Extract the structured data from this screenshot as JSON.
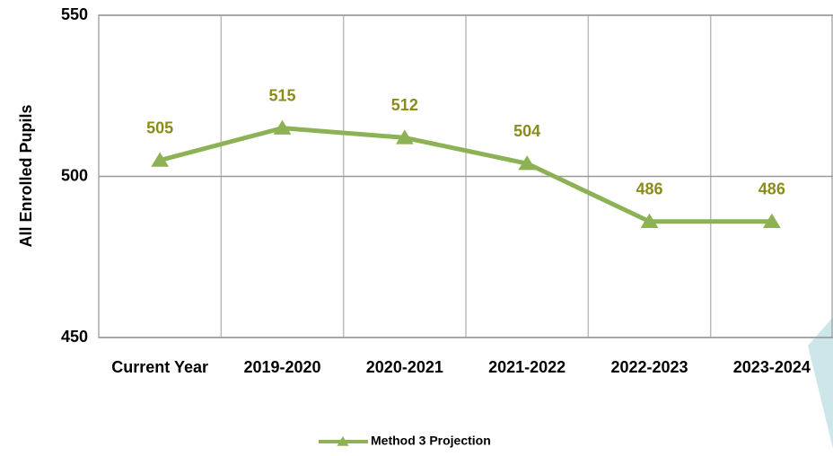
{
  "chart_data": {
    "type": "line",
    "y_label": "All Enrolled Pupils",
    "categories": [
      "Current Year",
      "2019-2020",
      "2020-2021",
      "2021-2022",
      "2022-2023",
      "2023-2024"
    ],
    "series": [
      {
        "name": "Method 3 Projection",
        "color": "#8db255",
        "values": [
          505,
          515,
          512,
          504,
          486,
          486
        ]
      }
    ],
    "ylim": [
      450,
      550
    ],
    "yticks": [
      450,
      500,
      550
    ],
    "grid": true,
    "legend": "bottom"
  }
}
